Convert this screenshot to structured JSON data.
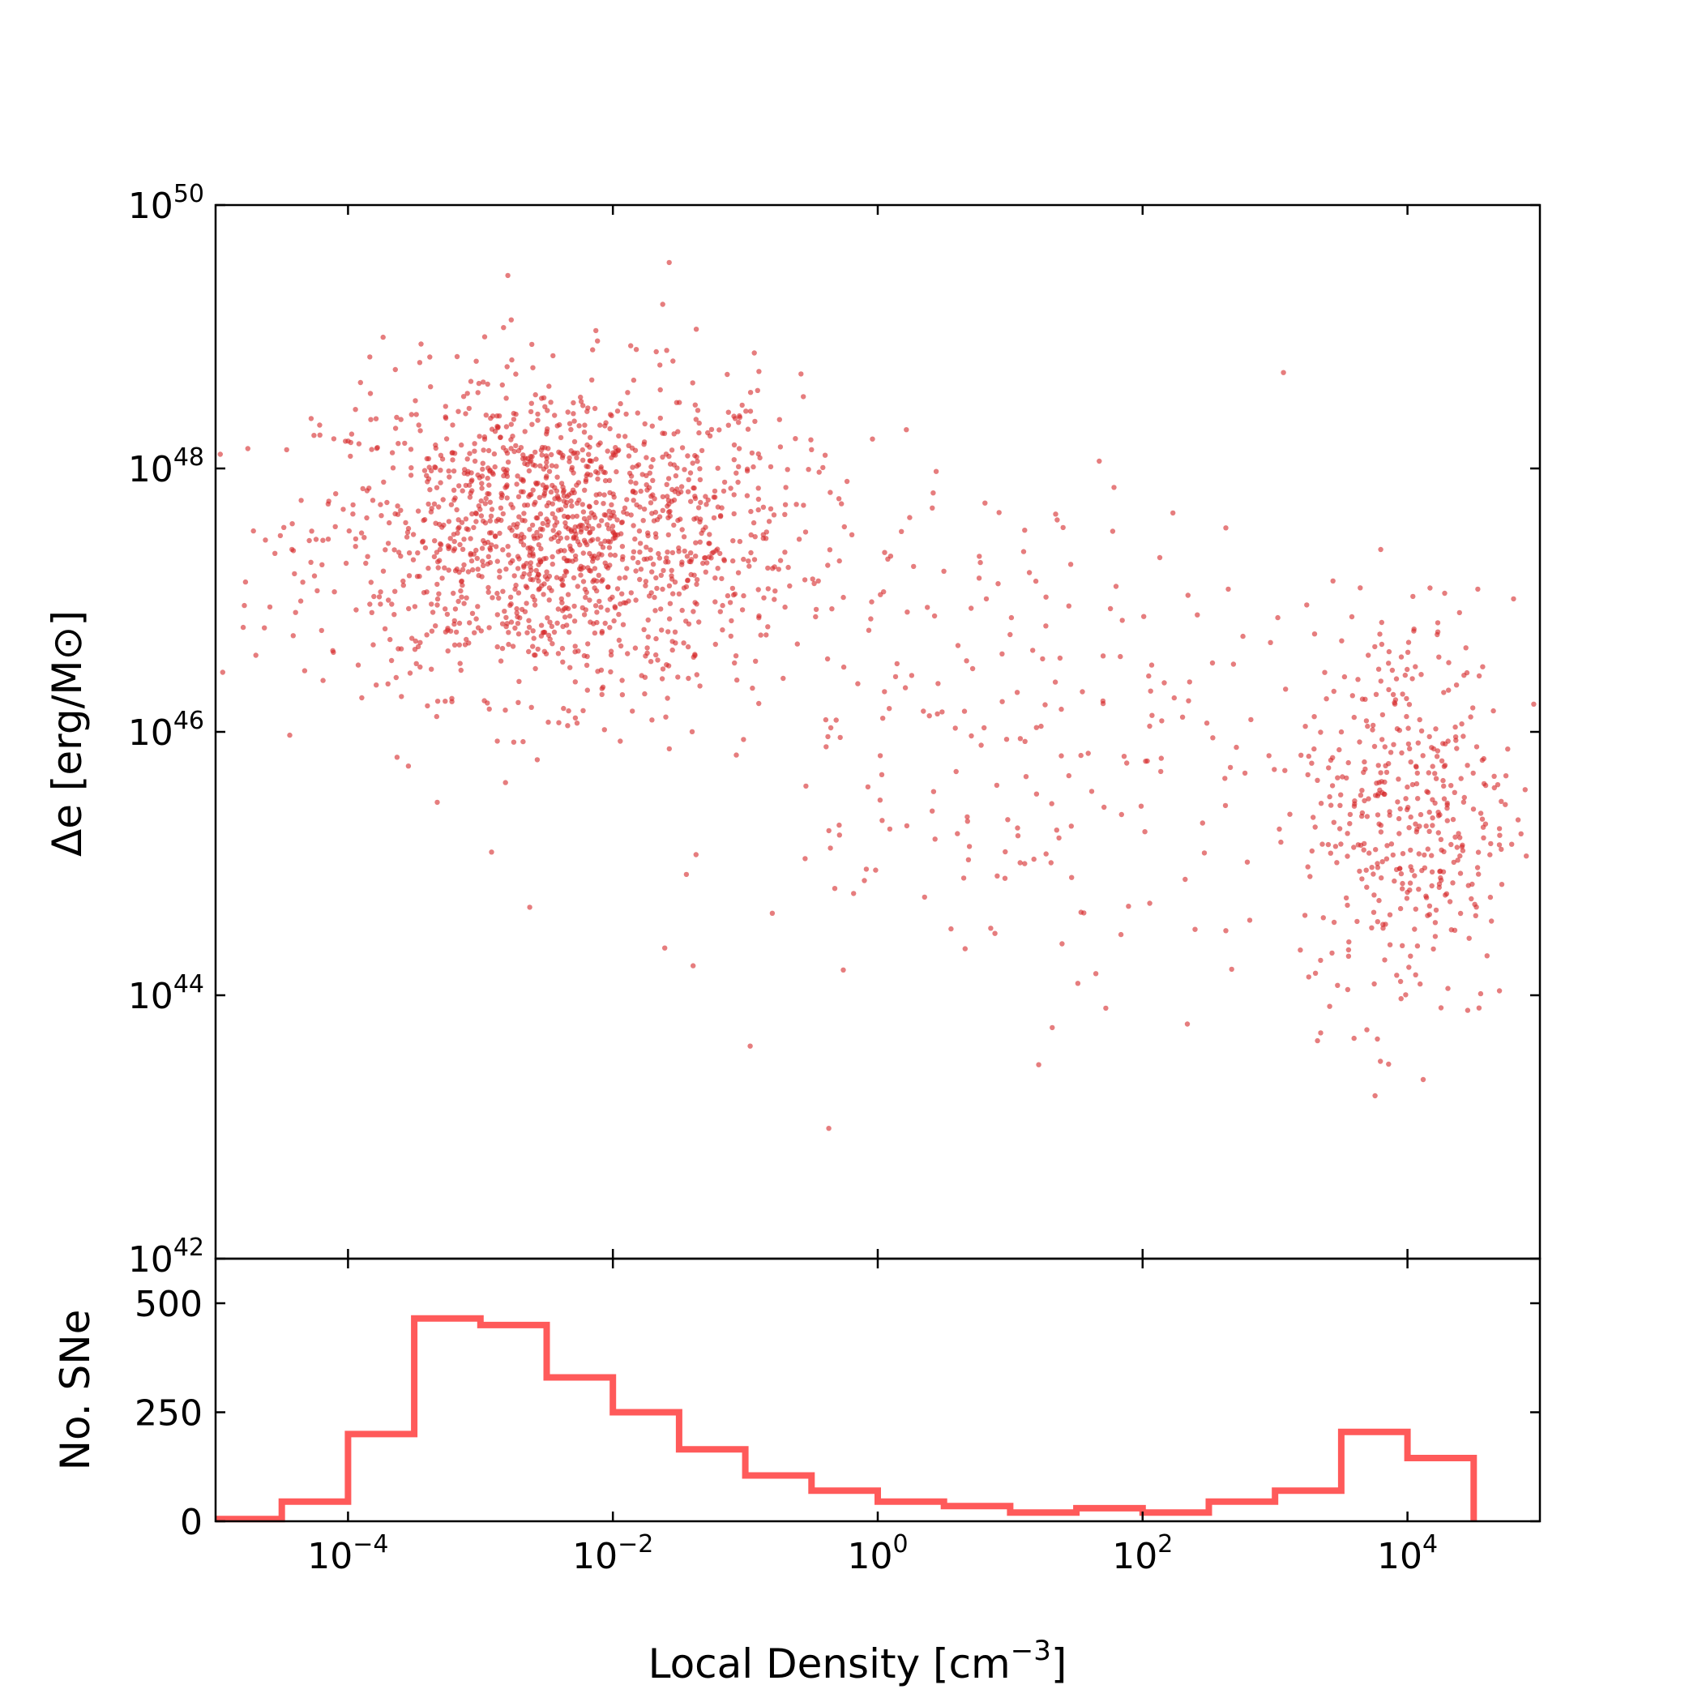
{
  "chart_data": [
    {
      "type": "scatter",
      "ylabel": "Δe [erg/M⊙]",
      "x_scale": "log",
      "y_scale": "log",
      "xlim": [
        1e-05,
        100000
      ],
      "ylim": [
        1e+42,
        1e+50
      ],
      "y_ticks": [
        {
          "value": 1e+42,
          "base": "10",
          "exp": "42"
        },
        {
          "value": 1e+44,
          "base": "10",
          "exp": "44"
        },
        {
          "value": 1e+46,
          "base": "10",
          "exp": "46"
        },
        {
          "value": 1e+48,
          "base": "10",
          "exp": "48"
        },
        {
          "value": 1e+50,
          "base": "10",
          "exp": "50"
        }
      ],
      "color": "#d62728",
      "clusters": [
        {
          "log_density_center": -2.4,
          "log_energy_center": 47.5,
          "spread_x": 0.9,
          "spread_y": 0.6,
          "count": 1500
        },
        {
          "log_density_center": 4.0,
          "log_energy_center": 45.4,
          "spread_x": 0.4,
          "spread_y": 0.8,
          "count": 420
        },
        {
          "log_density_center": 1.0,
          "log_energy_center": 46.0,
          "spread_x": 1.3,
          "spread_y": 1.0,
          "count": 250
        }
      ],
      "approx_points": 2300
    },
    {
      "type": "histogram",
      "ylabel": "No. SNe",
      "xlabel": "Local Density [cm",
      "xlabel_exp": "−3",
      "xlabel_suffix": "]",
      "x_scale": "log",
      "xlim": [
        1e-05,
        100000
      ],
      "ylim": [
        0,
        500
      ],
      "y_ticks": [
        0,
        250,
        500
      ],
      "x_ticks": [
        {
          "value": 0.0001,
          "base": "10",
          "exp": "−4"
        },
        {
          "value": 0.01,
          "base": "10",
          "exp": "−2"
        },
        {
          "value": 1,
          "base": "10",
          "exp": "0"
        },
        {
          "value": 100,
          "base": "10",
          "exp": "2"
        },
        {
          "value": 10000,
          "base": "10",
          "exp": "4"
        }
      ],
      "color": "#ff5a5a",
      "bin_edges_log10": [
        -5.0,
        -4.5,
        -4.0,
        -3.5,
        -3.0,
        -2.5,
        -2.0,
        -1.5,
        -1.0,
        -0.5,
        0.0,
        0.5,
        1.0,
        1.5,
        2.0,
        2.5,
        3.0,
        3.5,
        4.0,
        4.5
      ],
      "counts": [
        5,
        45,
        200,
        465,
        450,
        330,
        250,
        165,
        105,
        70,
        45,
        35,
        20,
        30,
        20,
        45,
        70,
        205,
        145
      ]
    }
  ]
}
